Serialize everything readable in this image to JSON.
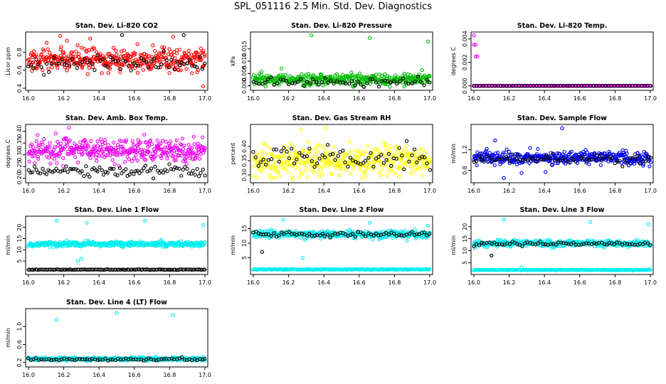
{
  "title": "SPL_051116  2.5 Min. Std. Dev. Diagnostics",
  "chart_data": [
    {
      "type": "scatter",
      "title": "Stan. Dev. Li-820 CO2",
      "ylabel": "Licor ppm",
      "xlim": [
        16.0,
        17.0
      ],
      "ylim": [
        0.4,
        1.0
      ],
      "yticks": [
        "0.4",
        "0.6",
        "0.8"
      ],
      "xticks": [
        "16.0",
        "16.2",
        "16.4",
        "16.6",
        "16.8",
        "17.0"
      ],
      "series": [
        {
          "color": "#ff0000",
          "level": 0.72,
          "spread": 0.09,
          "n": 380,
          "outliers": [
            [
              16.18,
              0.98
            ],
            [
              16.35,
              0.95
            ],
            [
              16.82,
              0.97
            ],
            [
              16.99,
              0.42
            ]
          ]
        },
        {
          "color": "#000000",
          "level": 0.68,
          "spread": 0.06,
          "n": 70,
          "outliers": [
            [
              16.53,
              0.99
            ],
            [
              16.88,
              0.99
            ]
          ]
        }
      ]
    },
    {
      "type": "scatter",
      "title": "Stan. Dev. Li-820 Pressure",
      "ylabel": "kPa",
      "xlim": [
        16.0,
        17.0
      ],
      "ylim": [
        -0.001,
        0.021
      ],
      "yticks": [
        "0.000",
        "0.005",
        "0.010",
        "0.015"
      ],
      "xticks": [
        "16.0",
        "16.2",
        "16.4",
        "16.6",
        "16.8",
        "17.0"
      ],
      "series": [
        {
          "color": "#00bb00",
          "level": 0.0025,
          "spread": 0.0017,
          "n": 380,
          "outliers": [
            [
              16.33,
              0.0205
            ],
            [
              16.66,
              0.0195
            ],
            [
              16.99,
              0.018
            ],
            [
              16.16,
              0.007
            ]
          ]
        },
        {
          "color": "#000000",
          "level": 0.0015,
          "spread": 0.0012,
          "n": 60,
          "outliers": []
        }
      ]
    },
    {
      "type": "scatter",
      "title": "Stan. Dev. Li-820 Temp.",
      "ylabel": "degrees C",
      "xlim": [
        16.0,
        17.0
      ],
      "ylim": [
        -0.0002,
        0.0044
      ],
      "yticks": [
        "0.000",
        "0.002",
        "0.004"
      ],
      "xticks": [
        "16.0",
        "16.2",
        "16.4",
        "16.6",
        "16.8",
        "17.0"
      ],
      "series": [
        {
          "color": "#ee00ee",
          "level": 0.0,
          "spread": 0.0,
          "n": 150,
          "outliers": [
            [
              16.0,
              0.0043
            ],
            [
              16.0,
              0.0035
            ],
            [
              16.01,
              0.0035
            ],
            [
              16.01,
              0.0025
            ],
            [
              16.02,
              0.0025
            ]
          ]
        },
        {
          "color": "#000000",
          "level": 0.0,
          "spread": 0.0,
          "n": 60,
          "outliers": []
        }
      ]
    },
    {
      "type": "scatter",
      "title": "Stan. Dev. Amb. Box Temp.",
      "ylabel": "degrees C",
      "xlim": [
        16.0,
        17.0
      ],
      "ylim": [
        0.19,
        0.42
      ],
      "yticks": [
        "0.20",
        "0.25",
        "0.30",
        "0.35",
        "0.40"
      ],
      "xticks": [
        "16.0",
        "16.2",
        "16.4",
        "16.6",
        "16.8",
        "17.0"
      ],
      "series": [
        {
          "color": "#ee00ee",
          "level": 0.32,
          "spread": 0.035,
          "n": 380,
          "outliers": [
            [
              16.23,
              0.415
            ]
          ]
        },
        {
          "color": "#000000",
          "level": 0.23,
          "spread": 0.015,
          "n": 90,
          "outliers": []
        }
      ]
    },
    {
      "type": "scatter",
      "title": "Stan. Dev. Gas Stream RH",
      "ylabel": "percent",
      "xlim": [
        16.0,
        17.0
      ],
      "ylim": [
        0.28,
        0.47
      ],
      "yticks": [
        "0.30",
        "0.35",
        "0.40"
      ],
      "xticks": [
        "16.0",
        "16.2",
        "16.4",
        "16.6",
        "16.8",
        "17.0"
      ],
      "series": [
        {
          "color": "#ffff00",
          "level": 0.35,
          "spread": 0.04,
          "n": 380,
          "outliers": [
            [
              16.27,
              0.46
            ],
            [
              16.41,
              0.465
            ]
          ]
        },
        {
          "color": "#000000",
          "level": 0.36,
          "spread": 0.03,
          "n": 70,
          "outliers": []
        }
      ]
    },
    {
      "type": "scatter",
      "title": "Stan. Dev. Sample Flow",
      "ylabel": "ml/min",
      "xlim": [
        16.0,
        17.0
      ],
      "ylim": [
        0.6,
        1.65
      ],
      "yticks": [
        "0.8",
        "1.2"
      ],
      "xticks": [
        "16.0",
        "16.2",
        "16.4",
        "16.6",
        "16.8",
        "17.0"
      ],
      "series": [
        {
          "color": "#0000ee",
          "level": 1.05,
          "spread": 0.09,
          "n": 380,
          "outliers": [
            [
              16.5,
              1.62
            ],
            [
              16.12,
              1.38
            ],
            [
              16.17,
              0.65
            ],
            [
              16.27,
              0.75
            ]
          ]
        },
        {
          "color": "#000000",
          "level": 1.02,
          "spread": 0.06,
          "n": 70,
          "outliers": []
        }
      ]
    },
    {
      "type": "scatter",
      "title": "Stan. Dev. Line 1 Flow",
      "ylabel": "ml/min",
      "xlim": [
        16.0,
        17.0
      ],
      "ylim": [
        0,
        24
      ],
      "yticks": [
        "5",
        "10",
        "15",
        "20"
      ],
      "xticks": [
        "16.0",
        "16.2",
        "16.4",
        "16.6",
        "16.8",
        "17.0"
      ],
      "series": [
        {
          "color": "#00eeee",
          "level": 12.5,
          "spread": 0.8,
          "n": 380,
          "outliers": [
            [
              16.16,
              23
            ],
            [
              16.33,
              22
            ],
            [
              16.66,
              23
            ],
            [
              16.99,
              21
            ],
            [
              16.28,
              5
            ],
            [
              16.3,
              6
            ]
          ]
        },
        {
          "color": "#000000",
          "level": 1.2,
          "spread": 0.1,
          "n": 120,
          "outliers": []
        }
      ]
    },
    {
      "type": "scatter",
      "title": "Stan. Dev. Line 2 Flow",
      "ylabel": "ml/min",
      "xlim": [
        16.0,
        17.0
      ],
      "ylim": [
        0,
        18.5
      ],
      "yticks": [
        "5",
        "10",
        "15"
      ],
      "xticks": [
        "16.0",
        "16.2",
        "16.4",
        "16.6",
        "16.8",
        "17.0"
      ],
      "series": [
        {
          "color": "#00eeee",
          "level": 13,
          "spread": 0.9,
          "n": 380,
          "outliers": [
            [
              16.17,
              18
            ],
            [
              16.66,
              17
            ],
            [
              16.99,
              16
            ],
            [
              16.28,
              5
            ]
          ]
        },
        {
          "color": "#00eeee",
          "level": 1.0,
          "spread": 0.1,
          "n": 200,
          "outliers": []
        },
        {
          "color": "#000000",
          "level": 13,
          "spread": 0.7,
          "n": 70,
          "outliers": [
            [
              16.05,
              7
            ]
          ]
        }
      ]
    },
    {
      "type": "scatter",
      "title": "Stan. Dev. Line 3 Flow",
      "ylabel": "ml/min",
      "xlim": [
        16.0,
        17.0
      ],
      "ylim": [
        1,
        23.5
      ],
      "yticks": [
        "5",
        "10",
        "15",
        "20"
      ],
      "xticks": [
        "16.0",
        "16.2",
        "16.4",
        "16.6",
        "16.8",
        "17.0"
      ],
      "series": [
        {
          "color": "#00eeee",
          "level": 13,
          "spread": 0.9,
          "n": 380,
          "outliers": [
            [
              16.17,
              23
            ],
            [
              16.66,
              22
            ],
            [
              16.99,
              21
            ],
            [
              16.27,
              3
            ],
            [
              16.1,
              8
            ]
          ]
        },
        {
          "color": "#00eeee",
          "level": 2.0,
          "spread": 0.1,
          "n": 200,
          "outliers": []
        },
        {
          "color": "#000000",
          "level": 12.8,
          "spread": 0.6,
          "n": 70,
          "outliers": [
            [
              16.1,
              8
            ]
          ]
        }
      ]
    },
    {
      "type": "scatter",
      "title": "Stan. Dev. Line 4 (LT) Flow",
      "ylabel": "ml/min",
      "xlim": [
        16.0,
        17.0
      ],
      "ylim": [
        0.15,
        1.35
      ],
      "yticks": [
        "0.2",
        "0.6",
        "1.0"
      ],
      "xticks": [
        "16.0",
        "16.2",
        "16.4",
        "16.6",
        "16.8",
        "17.0"
      ],
      "series": [
        {
          "color": "#00eeee",
          "level": 0.28,
          "spread": 0.025,
          "n": 380,
          "outliers": [
            [
              16.16,
              1.15
            ],
            [
              16.5,
              1.3
            ],
            [
              16.82,
              1.25
            ]
          ]
        },
        {
          "color": "#000000",
          "level": 0.27,
          "spread": 0.02,
          "n": 70,
          "outliers": []
        }
      ]
    }
  ]
}
